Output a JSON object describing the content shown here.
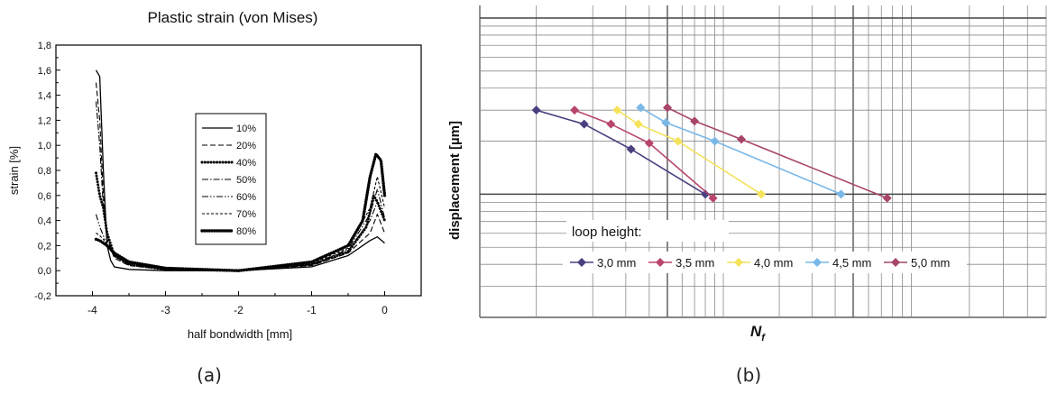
{
  "chart_data": [
    {
      "type": "line",
      "panel_caption": "(a)",
      "title": "Plastic strain (von Mises)",
      "xlabel": "half bondwidth [mm]",
      "ylabel": "strain [%]",
      "xlim": [
        -4.5,
        0.5
      ],
      "ylim": [
        -0.2,
        1.8
      ],
      "xticks": [
        -4,
        -3,
        -2,
        -1,
        0
      ],
      "xtick_labels": [
        "-4",
        "-3",
        "-2",
        "-1",
        "0"
      ],
      "yticks": [
        -0.2,
        0.0,
        0.2,
        0.4,
        0.6,
        0.8,
        1.0,
        1.2,
        1.4,
        1.6,
        1.8
      ],
      "ytick_labels": [
        "-0,2",
        "0,0",
        "0,2",
        "0,4",
        "0,6",
        "0,8",
        "1,0",
        "1,2",
        "1,4",
        "1,6",
        "1,8"
      ],
      "legend_placement": "center-right",
      "grid": false,
      "series": [
        {
          "name": "10%",
          "style": "solid",
          "x": [
            -3.95,
            -3.9,
            -3.85,
            -3.8,
            -3.75,
            -3.7,
            -3.5,
            -3.0,
            -2.0,
            -1.0,
            -0.5,
            -0.2,
            -0.1,
            0.0
          ],
          "y": [
            1.6,
            1.55,
            0.8,
            0.2,
            0.08,
            0.03,
            0.01,
            0.0,
            0.0,
            0.03,
            0.12,
            0.24,
            0.27,
            0.22
          ]
        },
        {
          "name": "20%",
          "style": "dashed",
          "x": [
            -3.95,
            -3.9,
            -3.85,
            -3.8,
            -3.7,
            -3.5,
            -3.0,
            -2.0,
            -1.0,
            -0.5,
            -0.2,
            -0.1,
            0.0
          ],
          "y": [
            1.5,
            1.2,
            0.6,
            0.25,
            0.1,
            0.04,
            0.01,
            0.0,
            0.04,
            0.14,
            0.3,
            0.45,
            0.3
          ]
        },
        {
          "name": "40%",
          "style": "dotted",
          "x": [
            -3.95,
            -3.9,
            -3.85,
            -3.8,
            -3.7,
            -3.5,
            -3.0,
            -2.0,
            -1.0,
            -0.5,
            -0.25,
            -0.15,
            -0.1,
            0.0
          ],
          "y": [
            0.78,
            0.6,
            0.5,
            0.3,
            0.12,
            0.05,
            0.01,
            0.0,
            0.05,
            0.15,
            0.35,
            0.6,
            0.55,
            0.4
          ]
        },
        {
          "name": "50%",
          "style": "dashdot",
          "x": [
            -3.95,
            -3.9,
            -3.85,
            -3.8,
            -3.7,
            -3.5,
            -3.0,
            -2.0,
            -1.0,
            -0.5,
            -0.2,
            -0.1,
            0.0
          ],
          "y": [
            1.35,
            1.0,
            0.5,
            0.25,
            0.12,
            0.05,
            0.01,
            0.0,
            0.05,
            0.16,
            0.4,
            0.55,
            0.4
          ]
        },
        {
          "name": "60%",
          "style": "dashdotdot",
          "x": [
            -3.95,
            -3.9,
            -3.85,
            -3.8,
            -3.7,
            -3.5,
            -3.0,
            -2.0,
            -1.0,
            -0.5,
            -0.2,
            -0.1,
            0.0
          ],
          "y": [
            0.45,
            0.35,
            0.28,
            0.2,
            0.12,
            0.06,
            0.01,
            0.0,
            0.05,
            0.17,
            0.45,
            0.65,
            0.42
          ]
        },
        {
          "name": "70%",
          "style": "shortdash",
          "x": [
            -3.95,
            -3.9,
            -3.85,
            -3.8,
            -3.7,
            -3.5,
            -3.0,
            -2.0,
            -1.0,
            -0.5,
            -0.2,
            -0.1,
            0.0
          ],
          "y": [
            0.3,
            0.28,
            0.25,
            0.2,
            0.12,
            0.06,
            0.01,
            0.0,
            0.06,
            0.18,
            0.5,
            0.75,
            0.5
          ]
        },
        {
          "name": "80%",
          "style": "heavydotted",
          "x": [
            -3.95,
            -3.9,
            -3.85,
            -3.8,
            -3.7,
            -3.5,
            -3.0,
            -2.0,
            -1.0,
            -0.5,
            -0.3,
            -0.2,
            -0.12,
            -0.05,
            0.0
          ],
          "y": [
            0.25,
            0.24,
            0.22,
            0.2,
            0.14,
            0.07,
            0.02,
            0.0,
            0.07,
            0.2,
            0.4,
            0.75,
            0.93,
            0.88,
            0.6
          ]
        }
      ]
    },
    {
      "type": "line",
      "panel_caption": "(b)",
      "xlabel": "N",
      "xlabel_subscript": "f",
      "ylabel": "displacement [µm]",
      "x_scale": "log",
      "y_scale": "log",
      "legend_title": "loop height:",
      "legend_placement": "bottom-center",
      "grid": true,
      "series": [
        {
          "name": "3,0 mm",
          "color": "#4b3f7f",
          "x": [
            1.0,
            1.8,
            3.2,
            8.0
          ],
          "y": [
            3.0,
            2.5,
            1.8,
            1.0
          ]
        },
        {
          "name": "3,5 mm",
          "color": "#b8456e",
          "x": [
            1.6,
            2.5,
            4.0,
            8.8
          ],
          "y": [
            3.0,
            2.5,
            1.95,
            0.95
          ]
        },
        {
          "name": "4,0 mm",
          "color": "#f4e25a",
          "x": [
            2.7,
            3.5,
            5.7,
            16.0
          ],
          "y": [
            3.0,
            2.5,
            2.0,
            1.0
          ]
        },
        {
          "name": "4,5 mm",
          "color": "#7ab8e8",
          "x": [
            3.6,
            4.9,
            9.0,
            43.0
          ],
          "y": [
            3.1,
            2.55,
            2.0,
            1.0
          ]
        },
        {
          "name": "5,0 mm",
          "color": "#a8456b",
          "x": [
            5.0,
            7.0,
            12.5,
            75.0
          ],
          "y": [
            3.1,
            2.6,
            2.05,
            0.95
          ]
        }
      ]
    }
  ]
}
